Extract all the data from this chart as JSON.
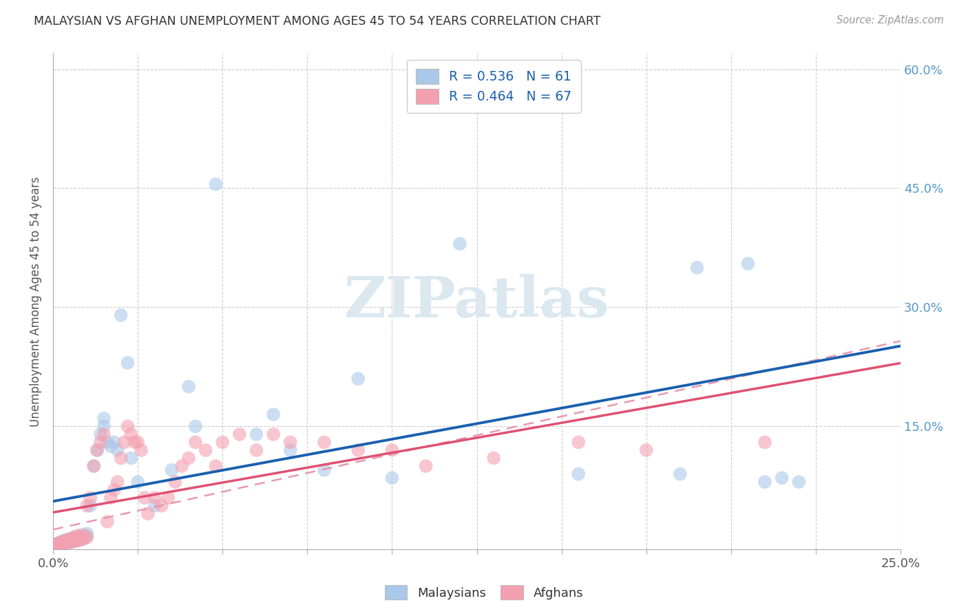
{
  "title": "MALAYSIAN VS AFGHAN UNEMPLOYMENT AMONG AGES 45 TO 54 YEARS CORRELATION CHART",
  "source": "Source: ZipAtlas.com",
  "ylabel": "Unemployment Among Ages 45 to 54 years",
  "xlim": [
    0,
    0.25
  ],
  "ylim": [
    -0.005,
    0.62
  ],
  "legend1_label": "Malaysians",
  "legend2_label": "Afghans",
  "r1": 0.536,
  "n1": 61,
  "r2": 0.464,
  "n2": 67,
  "blue_color": "#aac8e8",
  "pink_color": "#f4a0b0",
  "blue_line_color": "#1a5faf",
  "pink_line_color": "#e05070",
  "pink_dash_color": "#e898b0",
  "background_color": "#ffffff",
  "grid_color": "#cccccc",
  "title_color": "#333333",
  "axis_label_color": "#555555",
  "right_tick_color": "#5599cc",
  "watermark_color": "#dce8f0",
  "malaysian_x": [
    0.001,
    0.001,
    0.001,
    0.002,
    0.002,
    0.002,
    0.002,
    0.003,
    0.003,
    0.003,
    0.003,
    0.004,
    0.004,
    0.004,
    0.005,
    0.005,
    0.005,
    0.006,
    0.006,
    0.006,
    0.007,
    0.007,
    0.008,
    0.008,
    0.008,
    0.009,
    0.01,
    0.01,
    0.011,
    0.012,
    0.013,
    0.014,
    0.015,
    0.015,
    0.016,
    0.017,
    0.018,
    0.019,
    0.02,
    0.022,
    0.023,
    0.025,
    0.03,
    0.035,
    0.04,
    0.042,
    0.048,
    0.06,
    0.065,
    0.07,
    0.08,
    0.09,
    0.1,
    0.12,
    0.155,
    0.185,
    0.19,
    0.205,
    0.21,
    0.215,
    0.22
  ],
  "malaysian_y": [
    0.0,
    0.001,
    0.002,
    0.001,
    0.002,
    0.003,
    0.004,
    0.002,
    0.003,
    0.005,
    0.006,
    0.003,
    0.005,
    0.007,
    0.004,
    0.006,
    0.008,
    0.005,
    0.007,
    0.01,
    0.006,
    0.009,
    0.007,
    0.01,
    0.013,
    0.01,
    0.012,
    0.015,
    0.05,
    0.1,
    0.12,
    0.14,
    0.15,
    0.16,
    0.13,
    0.125,
    0.13,
    0.12,
    0.29,
    0.23,
    0.11,
    0.08,
    0.05,
    0.095,
    0.2,
    0.15,
    0.455,
    0.14,
    0.165,
    0.12,
    0.095,
    0.21,
    0.085,
    0.38,
    0.09,
    0.09,
    0.35,
    0.355,
    0.08,
    0.085,
    0.08
  ],
  "afghan_x": [
    0.001,
    0.001,
    0.001,
    0.002,
    0.002,
    0.002,
    0.003,
    0.003,
    0.003,
    0.004,
    0.004,
    0.004,
    0.005,
    0.005,
    0.005,
    0.006,
    0.006,
    0.006,
    0.007,
    0.007,
    0.007,
    0.008,
    0.008,
    0.009,
    0.009,
    0.01,
    0.01,
    0.011,
    0.012,
    0.013,
    0.014,
    0.015,
    0.016,
    0.017,
    0.018,
    0.019,
    0.02,
    0.021,
    0.022,
    0.023,
    0.024,
    0.025,
    0.026,
    0.027,
    0.028,
    0.03,
    0.032,
    0.034,
    0.036,
    0.038,
    0.04,
    0.042,
    0.045,
    0.048,
    0.05,
    0.055,
    0.06,
    0.065,
    0.07,
    0.08,
    0.09,
    0.1,
    0.11,
    0.13,
    0.155,
    0.175,
    0.21
  ],
  "afghan_y": [
    0.0,
    0.001,
    0.002,
    0.001,
    0.002,
    0.003,
    0.002,
    0.003,
    0.005,
    0.003,
    0.005,
    0.007,
    0.004,
    0.006,
    0.008,
    0.005,
    0.007,
    0.01,
    0.006,
    0.008,
    0.012,
    0.007,
    0.011,
    0.008,
    0.013,
    0.01,
    0.05,
    0.06,
    0.1,
    0.12,
    0.13,
    0.14,
    0.03,
    0.06,
    0.07,
    0.08,
    0.11,
    0.13,
    0.15,
    0.14,
    0.13,
    0.13,
    0.12,
    0.06,
    0.04,
    0.06,
    0.05,
    0.06,
    0.08,
    0.1,
    0.11,
    0.13,
    0.12,
    0.1,
    0.13,
    0.14,
    0.12,
    0.14,
    0.13,
    0.13,
    0.12,
    0.12,
    0.1,
    0.11,
    0.13,
    0.12,
    0.13
  ]
}
